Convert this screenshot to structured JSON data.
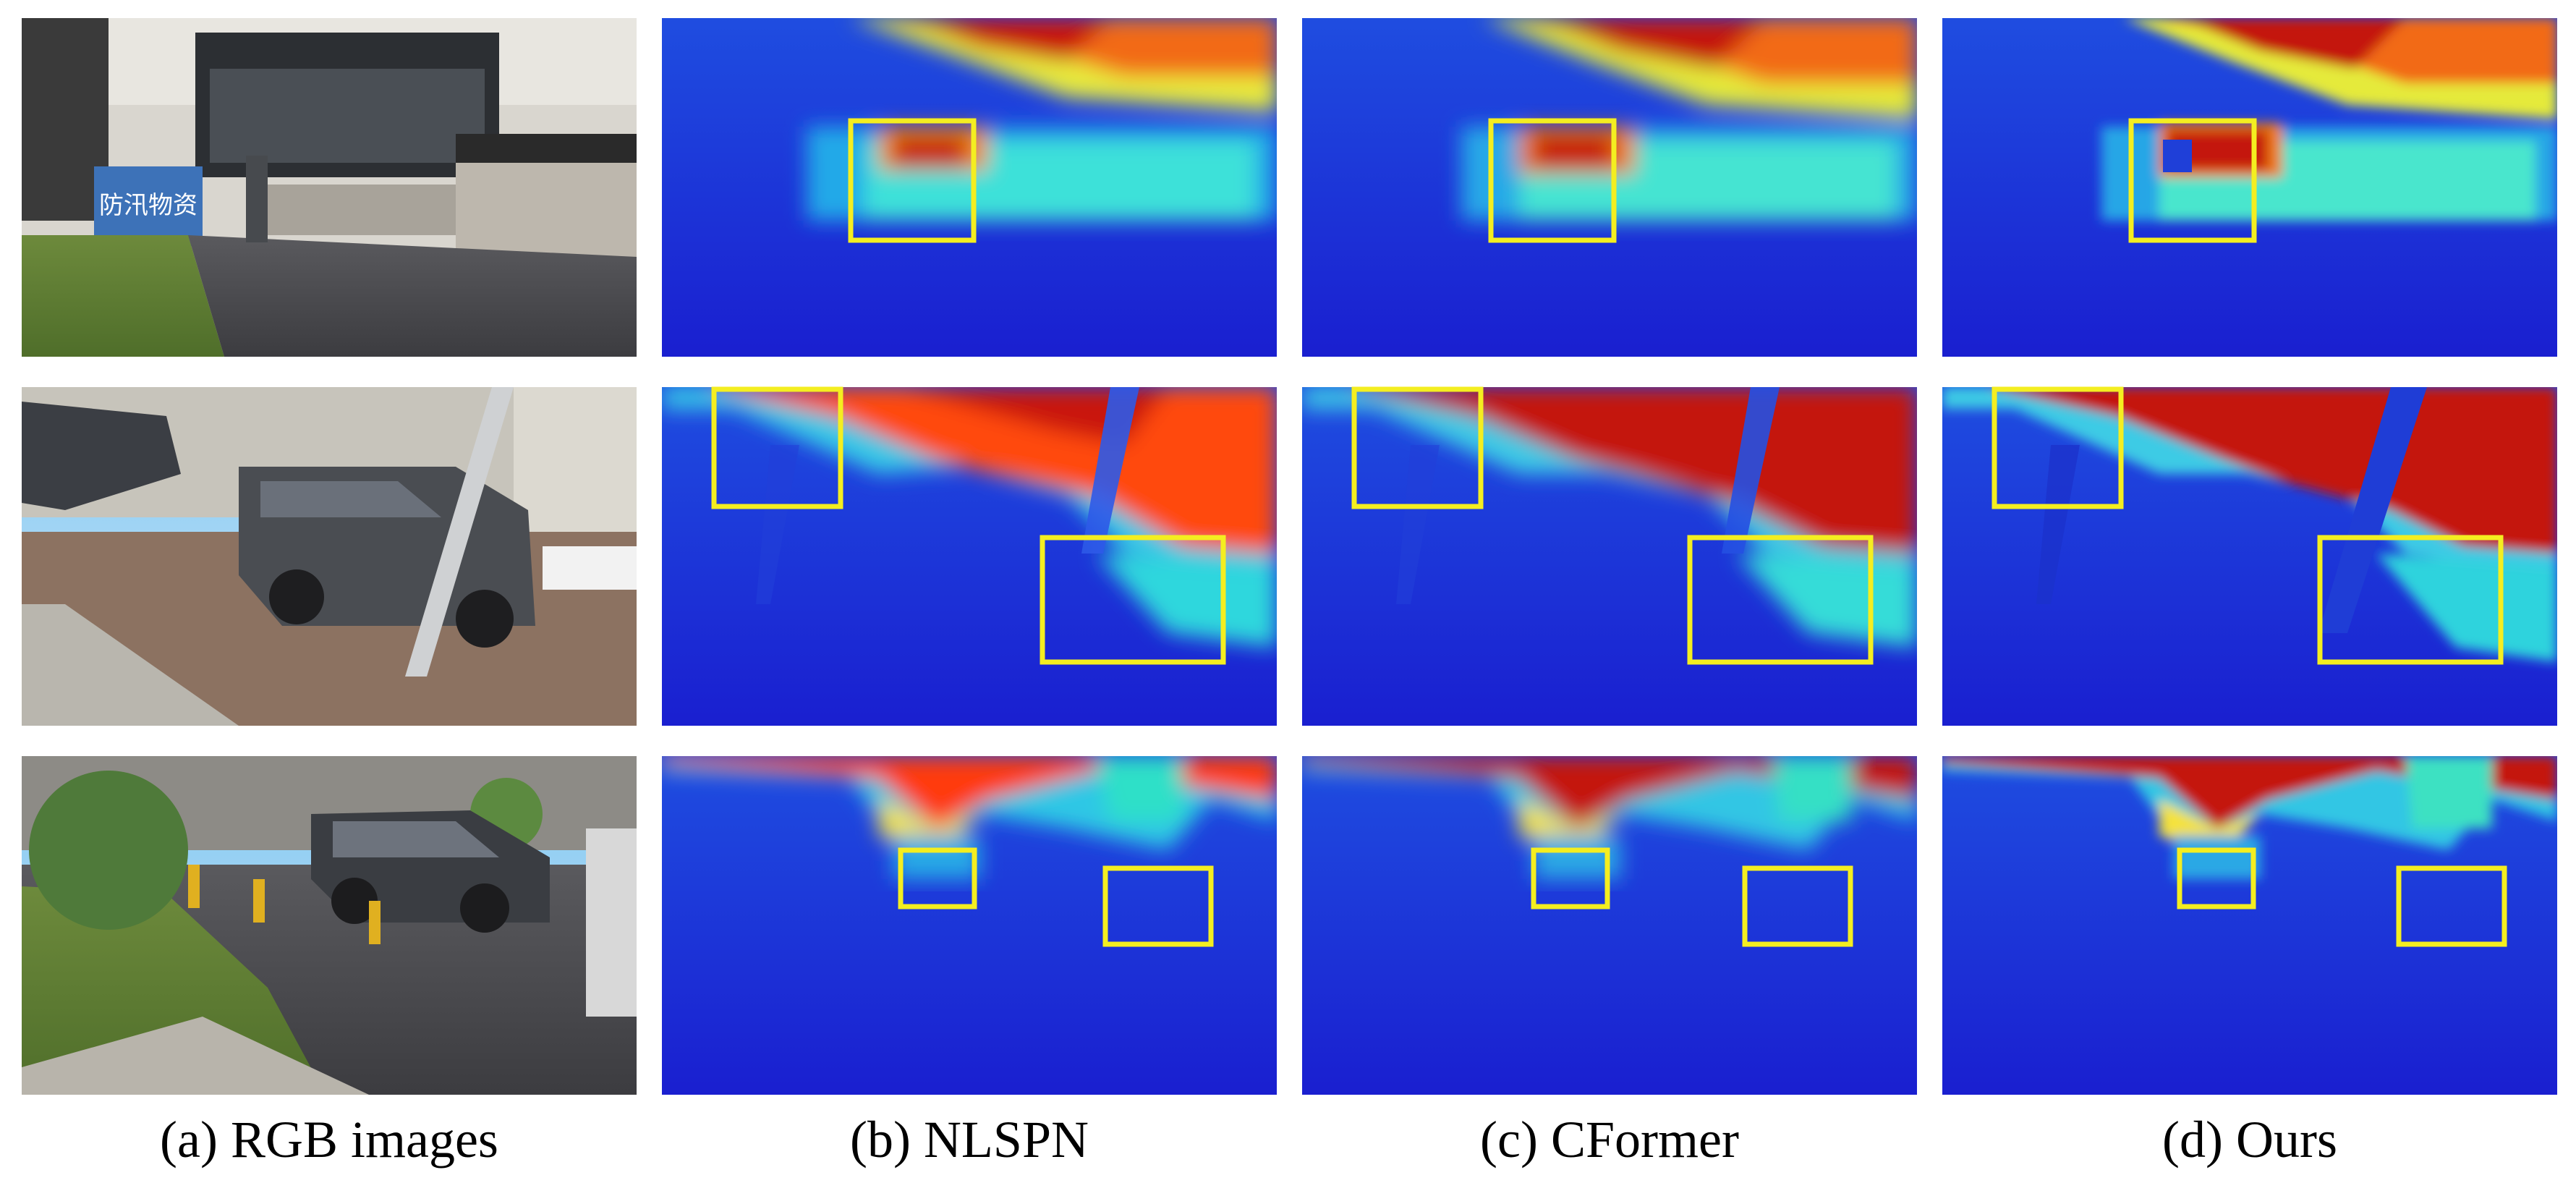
{
  "figure": {
    "columns": [
      {
        "caption": "(a) RGB images",
        "kind": "rgb"
      },
      {
        "caption": "(b) NLSPN",
        "kind": "depth"
      },
      {
        "caption": "(c) CFormer",
        "kind": "depth"
      },
      {
        "caption": "(d) Ours",
        "kind": "depth"
      }
    ],
    "rows": [
      {
        "scene": "parking-gate",
        "sign_text": "防汛物资"
      },
      {
        "scene": "parked-suv-with-pole"
      },
      {
        "scene": "parked-sedan-with-bollards"
      }
    ],
    "highlight_box_color": "#f4ee20",
    "depth_colormap": "jet",
    "colors": {
      "near": "#1a2bd6",
      "mid": "#29c8e8",
      "far": "#c41208"
    }
  }
}
